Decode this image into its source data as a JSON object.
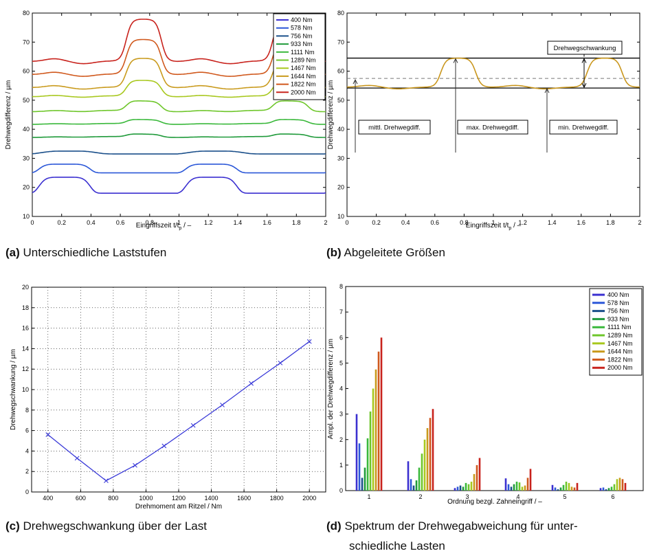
{
  "charts": {
    "a": {
      "caption_label": "(a)",
      "caption_text": "Unterschiedliche Laststufen",
      "xlabel": "Eingriffszeit t/t",
      "xlabel_sub": "p",
      "xlabel_suffix": " / –",
      "ylabel": "Drehwegdifferenz / µm"
    },
    "b": {
      "caption_label": "(b)",
      "caption_text": "Abgeleitete Größen",
      "xlabel": "Eingriffszeit t/t",
      "xlabel_sub": "p",
      "xlabel_suffix": " / –",
      "ylabel": "Drehwegdifferenz / µm",
      "annotations": {
        "schwankung": "Drehwegschwankung",
        "mittl": "mittl. Drehwegdiff.",
        "max": "max. Drehwegdiff.",
        "min": "min. Drehwegdiff."
      }
    },
    "c": {
      "caption_label": "(c)",
      "caption_text": "Drehwegschwankung über der Last",
      "xlabel": "Drehmoment am Ritzel / Nm",
      "ylabel": "Drehwegschwankung / µm"
    },
    "d": {
      "caption_label": "(d)",
      "caption_text_1": "Spektrum der Drehwegabweichung für unter-",
      "caption_text_2": "schiedliche Lasten",
      "xlabel": "Ordnung bezgl. Zahneingriff / –",
      "ylabel": "Ampl. der Drehwegdifferenz / µm"
    }
  },
  "colors": [
    "#3a2fd0",
    "#2b57d8",
    "#1a4f8a",
    "#1f9a3a",
    "#39b83a",
    "#6ec62a",
    "#a8c81e",
    "#c99a1c",
    "#d0581c",
    "#c8221c"
  ],
  "chart_data": [
    {
      "type": "line",
      "panel": "a",
      "xlim": [
        0,
        2
      ],
      "ylim": [
        10,
        80
      ],
      "xticks": [
        "0",
        "0.2",
        "0.4",
        "0.6",
        "0.8",
        "1",
        "1.2",
        "1.4",
        "1.6",
        "1.8",
        "2"
      ],
      "yticks": [
        "10",
        "20",
        "30",
        "40",
        "50",
        "60",
        "70",
        "80"
      ],
      "legend_position": "top-right",
      "series": [
        {
          "name": "400 Nm",
          "base": 18.0,
          "peak": 23.5,
          "mid": 18.5,
          "shape": "low"
        },
        {
          "name": "578 Nm",
          "base": 25.0,
          "peak": 28.0,
          "mid": 25.0,
          "shape": "low"
        },
        {
          "name": "756 Nm",
          "base": 31.5,
          "peak": 32.5,
          "mid": 31.5,
          "shape": "flat"
        },
        {
          "name": "933 Nm",
          "base": 36.5,
          "peak": 38.5,
          "mid": 37.5,
          "shape": "high"
        },
        {
          "name": "1111 Nm",
          "base": 41.0,
          "peak": 43.5,
          "mid": 42.0,
          "shape": "high"
        },
        {
          "name": "1289 Nm",
          "base": 45.0,
          "peak": 50.0,
          "mid": 46.5,
          "shape": "high"
        },
        {
          "name": "1467 Nm",
          "base": 50.5,
          "peak": 57.0,
          "mid": 51.5,
          "shape": "high"
        },
        {
          "name": "1644 Nm",
          "base": 54.0,
          "peak": 64.5,
          "mid": 54.5,
          "shape": "high"
        },
        {
          "name": "1822 Nm",
          "base": 58.5,
          "peak": 71.0,
          "mid": 59.0,
          "shape": "high"
        },
        {
          "name": "2000 Nm",
          "base": 63.0,
          "peak": 78.0,
          "mid": 63.5,
          "shape": "high"
        }
      ]
    },
    {
      "type": "line",
      "panel": "b",
      "xlim": [
        0,
        2
      ],
      "ylim": [
        10,
        80
      ],
      "xticks": [
        "0",
        "0.2",
        "0.4",
        "0.6",
        "0.8",
        "1",
        "1.2",
        "1.4",
        "1.6",
        "1.8",
        "2"
      ],
      "yticks": [
        "10",
        "20",
        "30",
        "40",
        "50",
        "60",
        "70",
        "80"
      ],
      "series": [
        {
          "base": 54.5,
          "peak": 64.5,
          "mid": 54.5,
          "shape": "high"
        }
      ],
      "hlines": {
        "max": 64.5,
        "min": 54.2,
        "mean": 57.5
      }
    },
    {
      "type": "line",
      "panel": "c",
      "xlim": [
        300,
        2100
      ],
      "ylim": [
        0,
        20
      ],
      "xticks": [
        400,
        600,
        800,
        1000,
        1200,
        1400,
        1600,
        1800,
        2000
      ],
      "yticks": [
        0,
        2,
        4,
        6,
        8,
        10,
        12,
        14,
        16,
        18,
        20
      ],
      "grid": true,
      "x": [
        400,
        578,
        756,
        933,
        1111,
        1289,
        1467,
        1644,
        1822,
        2000
      ],
      "y": [
        5.6,
        3.3,
        1.1,
        2.6,
        4.5,
        6.5,
        8.5,
        10.6,
        12.6,
        14.7
      ]
    },
    {
      "type": "bar",
      "panel": "d",
      "ylim": [
        0,
        8
      ],
      "yticks": [
        0,
        1,
        2,
        3,
        4,
        5,
        6,
        7,
        8
      ],
      "categories": [
        "1",
        "2",
        "3",
        "4",
        "5",
        "6"
      ],
      "legend_position": "top-right",
      "series": [
        {
          "name": "400 Nm",
          "values": [
            3.0,
            1.15,
            0.1,
            0.48,
            0.22,
            0.1
          ]
        },
        {
          "name": "578 Nm",
          "values": [
            1.85,
            0.45,
            0.15,
            0.25,
            0.12,
            0.12
          ]
        },
        {
          "name": "756 Nm",
          "values": [
            0.5,
            0.2,
            0.2,
            0.15,
            0.05,
            0.05
          ]
        },
        {
          "name": "933 Nm",
          "values": [
            0.9,
            0.4,
            0.15,
            0.25,
            0.12,
            0.1
          ]
        },
        {
          "name": "1111 Nm",
          "values": [
            2.05,
            0.9,
            0.3,
            0.35,
            0.22,
            0.15
          ]
        },
        {
          "name": "1289 Nm",
          "values": [
            3.1,
            1.45,
            0.25,
            0.32,
            0.35,
            0.25
          ]
        },
        {
          "name": "1467 Nm",
          "values": [
            4.0,
            2.0,
            0.35,
            0.15,
            0.3,
            0.45
          ]
        },
        {
          "name": "1644 Nm",
          "values": [
            4.75,
            2.45,
            0.65,
            0.2,
            0.15,
            0.5
          ]
        },
        {
          "name": "1822 Nm",
          "values": [
            5.45,
            2.85,
            1.0,
            0.5,
            0.12,
            0.45
          ]
        },
        {
          "name": "2000 Nm",
          "values": [
            6.0,
            3.2,
            1.28,
            0.85,
            0.3,
            0.3
          ]
        }
      ]
    }
  ]
}
